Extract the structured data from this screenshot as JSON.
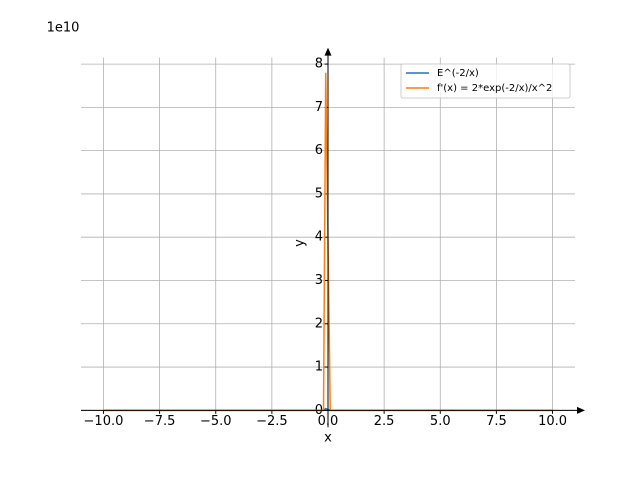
{
  "chart_data": {
    "type": "line",
    "offset_label": "1e10",
    "xlabel": "x",
    "ylabel": "y",
    "x": [
      -10,
      -5,
      -2,
      -1,
      -0.5,
      -0.2,
      -0.101,
      0.1,
      0.5,
      1,
      2,
      5,
      10
    ],
    "series": [
      {
        "name": "E^(-2/x)",
        "color": "#1f77b4",
        "values": [
          1.22,
          1.49,
          2.72,
          7.39,
          54.6,
          22026,
          398000000,
          2e-09,
          0.018,
          0.135,
          0.368,
          0.67,
          0.819
        ]
      },
      {
        "name": "f'(x) = 2*exp(-2/x)/x^2",
        "color": "#ff7f0e",
        "values": [
          0.0244,
          0.119,
          1.36,
          14.8,
          437,
          1100000,
          78000000000,
          4e-07,
          0.073,
          0.271,
          0.184,
          0.054,
          0.0164
        ]
      }
    ],
    "xlim": [
      -11,
      11
    ],
    "ylim": [
      -3900000000,
      81500000000
    ],
    "xticks": [
      {
        "value": -10,
        "label": "−10.0"
      },
      {
        "value": -7.5,
        "label": "−7.5"
      },
      {
        "value": -5,
        "label": "−5.0"
      },
      {
        "value": -2.5,
        "label": "−2.5"
      },
      {
        "value": 0,
        "label": "0.0"
      },
      {
        "value": 2.5,
        "label": "2.5"
      },
      {
        "value": 5,
        "label": "5.0"
      },
      {
        "value": 7.5,
        "label": "7.5"
      },
      {
        "value": 10,
        "label": "10.0"
      }
    ],
    "yticks": [
      {
        "value": 0,
        "label": "0"
      },
      {
        "value": 10000000000,
        "label": "1"
      },
      {
        "value": 20000000000,
        "label": "2"
      },
      {
        "value": 30000000000,
        "label": "3"
      },
      {
        "value": 40000000000,
        "label": "4"
      },
      {
        "value": 50000000000,
        "label": "5"
      },
      {
        "value": 60000000000,
        "label": "6"
      },
      {
        "value": 70000000000,
        "label": "7"
      },
      {
        "value": 80000000000,
        "label": "8"
      }
    ],
    "grid": true,
    "legend": "upper right"
  }
}
